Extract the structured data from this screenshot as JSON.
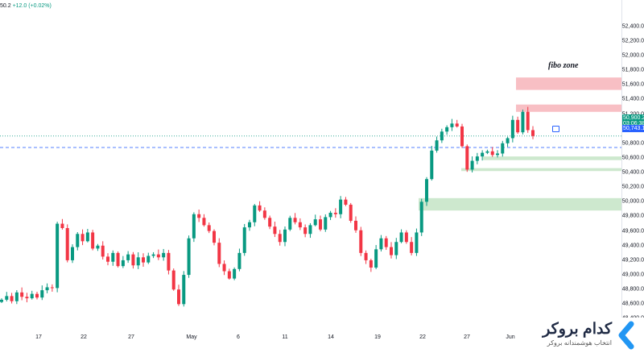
{
  "legend": {
    "value": "50.2",
    "change": "+12.0 (+0.02%)"
  },
  "colors": {
    "up": "#089981",
    "down": "#f23645",
    "support_zone": "#c8e6c9",
    "fibo_zone": "#f7b8be",
    "price_line": "#2962ff",
    "current_badge": "#089981",
    "level_badge": "#2962ff"
  },
  "price_badges": {
    "current_price": "50,900.2",
    "countdown": "03:06:38",
    "marked_level": "50,743.1"
  },
  "annotations": {
    "fibo_label": "fibo zone"
  },
  "logo": {
    "brand": "کدام بروکر",
    "tagline": "انتخاب هوشمندانه بروکر",
    "icon": "chevron-left-icon"
  },
  "chart_data": {
    "type": "candlestick",
    "title": "",
    "yaxis_side": "right",
    "ylim": [
      48240,
      52760
    ],
    "y_ticks": [
      "52,400.0",
      "52,200.0",
      "52,000.0",
      "51,800.0",
      "51,600.0",
      "51,400.0",
      "51,200.0",
      "51,000.0",
      "50,800.0",
      "50,600.0",
      "50,400.0",
      "50,200.0",
      "50,000.0",
      "49,800.0",
      "49,600.0",
      "49,400.0",
      "49,200.0",
      "49,000.0",
      "48,800.0",
      "48,600.0",
      "48,400.0"
    ],
    "x_ticks": [
      "17",
      "22",
      "27",
      "May",
      "6",
      "11",
      "14",
      "19",
      "22",
      "27",
      "Jun"
    ],
    "horizontal_lines": [
      {
        "name": "current",
        "value": 50900.2,
        "style": "dotted"
      },
      {
        "name": "marked",
        "value": 50743.1,
        "style": "dashed"
      }
    ],
    "zones": [
      {
        "kind": "fibo",
        "from": 51530,
        "to": 51700
      },
      {
        "kind": "resistance",
        "from": 51230,
        "to": 51330
      },
      {
        "kind": "support",
        "from": 50570,
        "to": 50620
      },
      {
        "kind": "support",
        "from": 50420,
        "to": 50460
      },
      {
        "kind": "support",
        "from": 49880,
        "to": 50050
      }
    ],
    "close_series": [
      48660,
      48710,
      48640,
      48760,
      48700,
      48680,
      48740,
      48690,
      48790,
      48830,
      48820,
      49700,
      49640,
      49200,
      49380,
      49560,
      49460,
      49580,
      49360,
      49400,
      49250,
      49180,
      49300,
      49120,
      49200,
      49280,
      49130,
      49240,
      49170,
      49260,
      49280,
      49240,
      49300,
      49060,
      48800,
      48600,
      49000,
      49500,
      49830,
      49780,
      49680,
      49600,
      49440,
      49150,
      49050,
      48950,
      49080,
      49300,
      49650,
      49720,
      49950,
      49880,
      49780,
      49660,
      49560,
      49450,
      49620,
      49780,
      49720,
      49650,
      49560,
      49680,
      49760,
      49620,
      49790,
      49850,
      49830,
      50030,
      49960,
      49740,
      49610,
      49300,
      49200,
      49100,
      49350,
      49500,
      49380,
      49270,
      49450,
      49580,
      49450,
      49300,
      49580,
      50000,
      50310,
      50700,
      50840,
      50960,
      51020,
      51070,
      51030,
      50760,
      50440,
      50560,
      50620,
      50670,
      50690,
      50640,
      50660,
      50800,
      50870,
      51120,
      50950,
      51230,
      50980,
      50900
    ]
  }
}
